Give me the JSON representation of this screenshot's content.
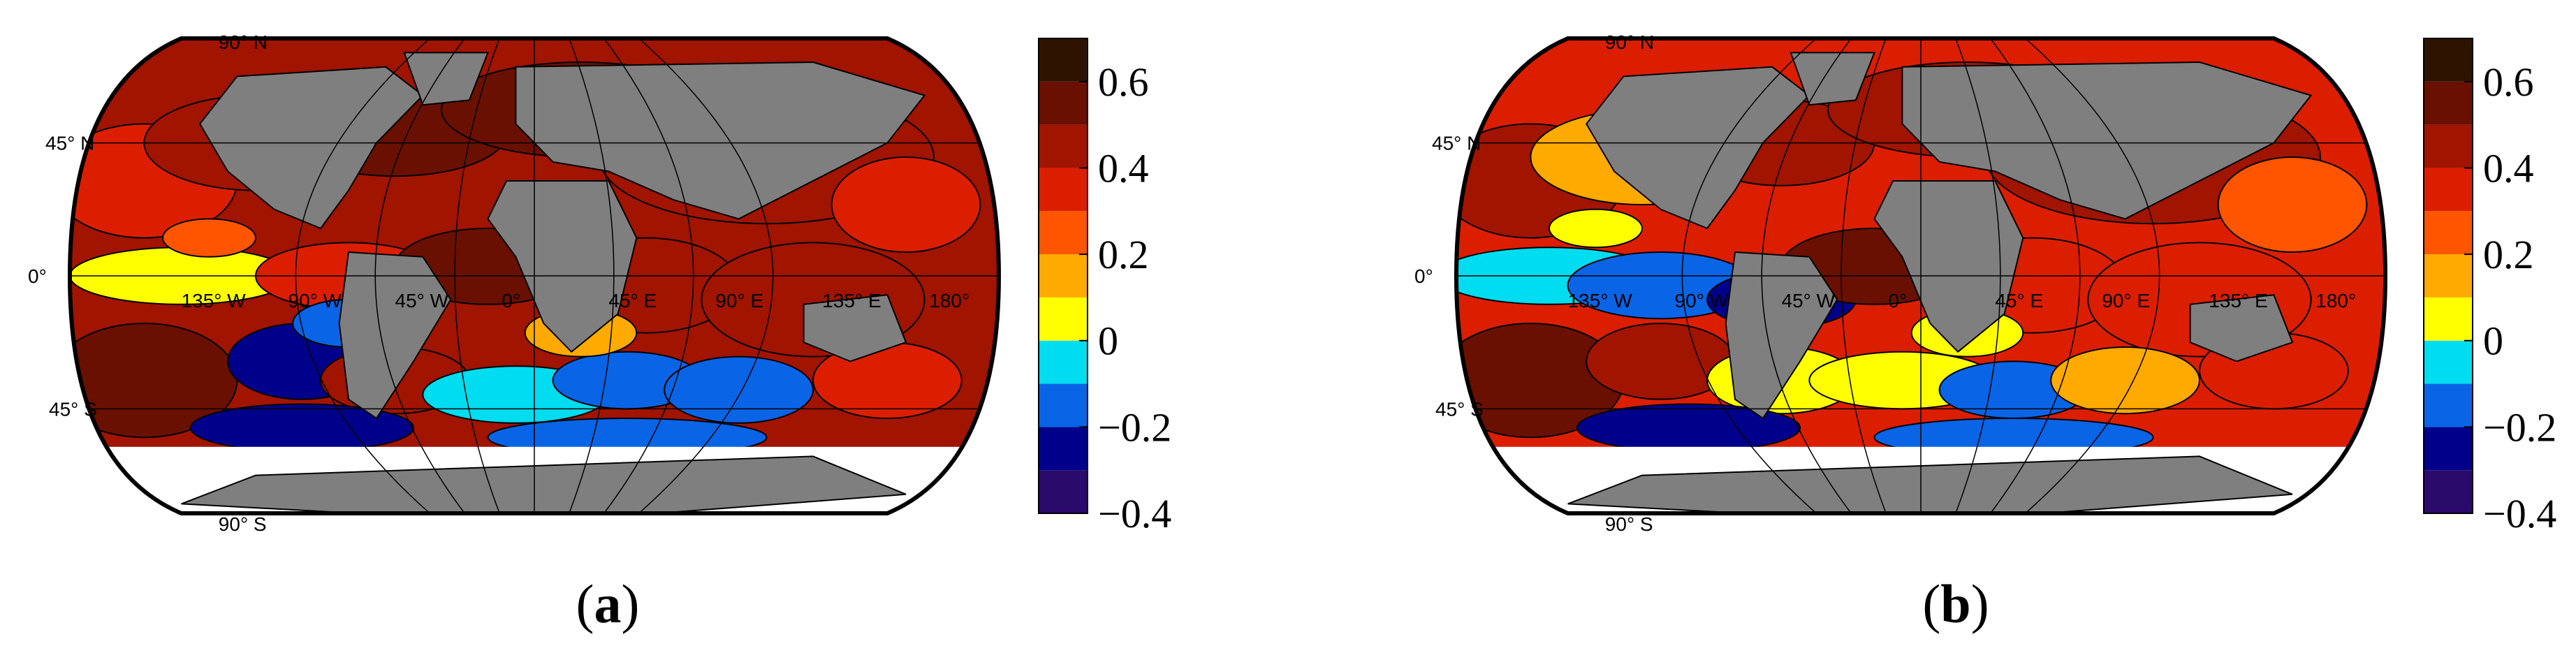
{
  "panels": [
    {
      "label": "(a)",
      "label_letter": "a",
      "lat_labels": [
        "90° N",
        "45° N",
        "0°",
        "45° S",
        "90° S"
      ],
      "lon_labels": [
        "135° W",
        "90° W",
        "45° W",
        "0°",
        "45° E",
        "90° E",
        "135° E",
        "180°"
      ],
      "colorbar_ticks": [
        "0.6",
        "0.4",
        "0.2",
        "0",
        "−0.2",
        "−0.4"
      ]
    },
    {
      "label": "(b)",
      "label_letter": "b",
      "lat_labels": [
        "90° N",
        "45° N",
        "0°",
        "45° S",
        "90° S"
      ],
      "lon_labels": [
        "135° W",
        "90° W",
        "45° W",
        "0°",
        "45° E",
        "90° E",
        "135° E",
        "180°"
      ],
      "colorbar_ticks": [
        "0.6",
        "0.4",
        "0.2",
        "0",
        "−0.2",
        "−0.4"
      ]
    }
  ],
  "colorbar": {
    "min": -0.4,
    "max": 0.7,
    "levels": [
      -0.4,
      -0.3,
      -0.2,
      -0.1,
      0.0,
      0.1,
      0.2,
      0.3,
      0.4,
      0.5,
      0.6,
      0.7
    ],
    "colors": [
      "#2a0a6b",
      "#00008b",
      "#0a64e6",
      "#00dcf0",
      "#ffff00",
      "#ffaa00",
      "#ff5500",
      "#dc1e00",
      "#a01400",
      "#6a1000",
      "#2e1400"
    ]
  },
  "colors": {
    "land": "#7f7f7f",
    "sea_ice": "#ffffff",
    "outline": "#000000"
  }
}
